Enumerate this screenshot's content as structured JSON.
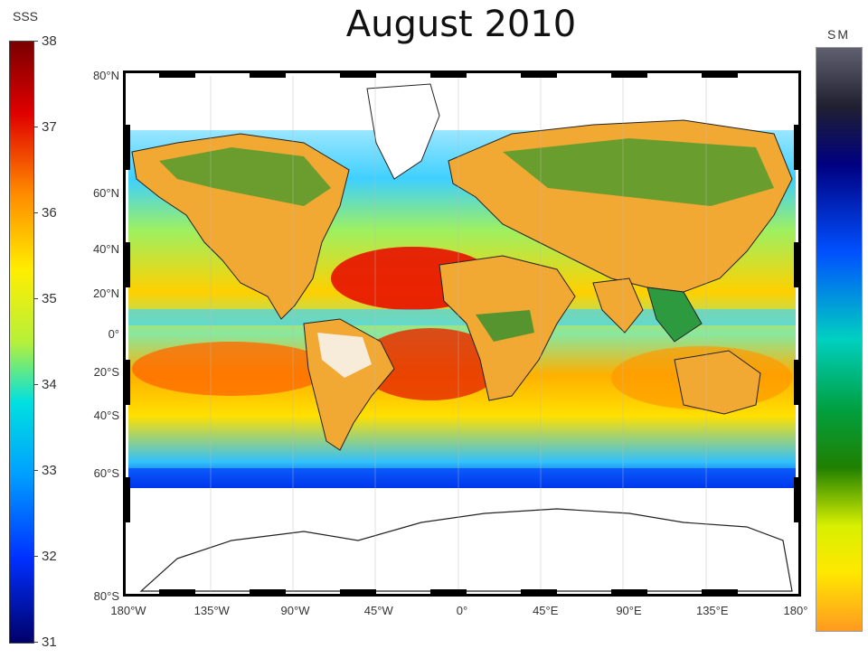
{
  "title": "August 2010",
  "left_colorbar": {
    "label": "SSS",
    "ticks": [
      "38",
      "37",
      "36",
      "35",
      "34",
      "33",
      "32",
      "31"
    ]
  },
  "right_colorbar": {
    "label": "SM"
  },
  "map": {
    "lat_labels": [
      "80°N",
      "60°N",
      "40°N",
      "20°N",
      "0°",
      "20°S",
      "40°S",
      "60°S",
      "80°S"
    ],
    "lon_labels": [
      "180°W",
      "135°W",
      "90°W",
      "45°W",
      "0°",
      "45°E",
      "90°E",
      "135°E",
      "180°"
    ]
  },
  "colors": {
    "ocean_high": "#b30000",
    "ocean_mid": "#f5d800",
    "ocean_low": "#00008b",
    "land_dry": "#f3a428",
    "land_wet": "#1a6e1a",
    "ice": "#ffffff"
  }
}
